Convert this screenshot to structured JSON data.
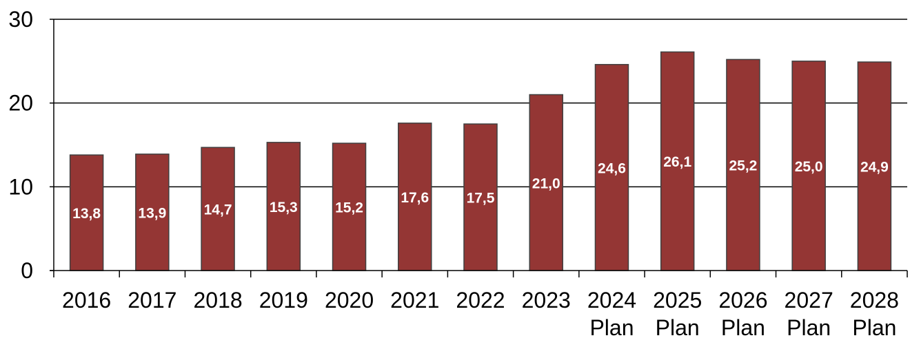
{
  "chart_data": {
    "type": "bar",
    "categories": [
      [
        "2016"
      ],
      [
        "2017"
      ],
      [
        "2018"
      ],
      [
        "2019"
      ],
      [
        "2020"
      ],
      [
        "2021"
      ],
      [
        "2022"
      ],
      [
        "2023"
      ],
      [
        "2024",
        "Plan"
      ],
      [
        "2025",
        "Plan"
      ],
      [
        "2026",
        "Plan"
      ],
      [
        "2027",
        "Plan"
      ],
      [
        "2028",
        "Plan"
      ]
    ],
    "values": [
      13.8,
      13.9,
      14.7,
      15.3,
      15.2,
      17.6,
      17.5,
      21.0,
      24.6,
      26.1,
      25.2,
      25.0,
      24.9
    ],
    "data_labels": [
      "13,8",
      "13,9",
      "14,7",
      "15,3",
      "15,2",
      "17,6",
      "17,5",
      "21,0",
      "24,6",
      "26,1",
      "25,2",
      "25,0",
      "24,9"
    ],
    "y_ticks": [
      "0",
      "10",
      "20",
      "30"
    ],
    "ylim": [
      0,
      30
    ],
    "grid": true,
    "legend": "none",
    "title": "",
    "xlabel": "",
    "ylabel": "",
    "colors": {
      "bar": "#943634",
      "bar_border": "#3f3f3f",
      "grid": "#000000",
      "data_label": "#ffffff"
    }
  }
}
